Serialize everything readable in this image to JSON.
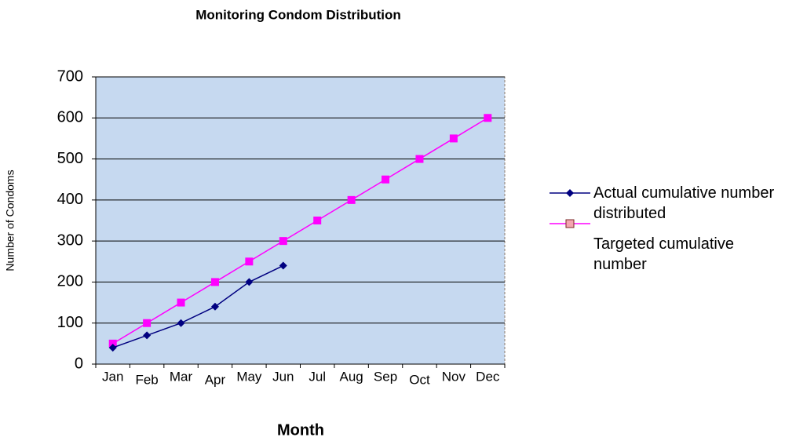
{
  "chart_data": {
    "type": "line",
    "title": "Monitoring Condom Distribution",
    "x_label": "Month",
    "y_label": "Number of Condoms",
    "categories": [
      "Jan",
      "Feb",
      "Mar",
      "Apr",
      "May",
      "Jun",
      "Jul",
      "Aug",
      "Sep",
      "Oct",
      "Nov",
      "Dec"
    ],
    "series": [
      {
        "name": "Actual cumulative number distributed",
        "color": "#000080",
        "marker": "diamond",
        "values": [
          40,
          70,
          100,
          140,
          200,
          240,
          null,
          null,
          null,
          null,
          null,
          null
        ]
      },
      {
        "name": "Targeted cumulative number",
        "color": "#ff00ff",
        "marker": "square",
        "values": [
          50,
          100,
          150,
          200,
          250,
          300,
          350,
          400,
          450,
          500,
          550,
          600
        ]
      }
    ],
    "ylim": [
      0,
      700
    ],
    "yticks": [
      0,
      100,
      200,
      300,
      400,
      500,
      600,
      700
    ],
    "grid": true,
    "legend": "right"
  }
}
